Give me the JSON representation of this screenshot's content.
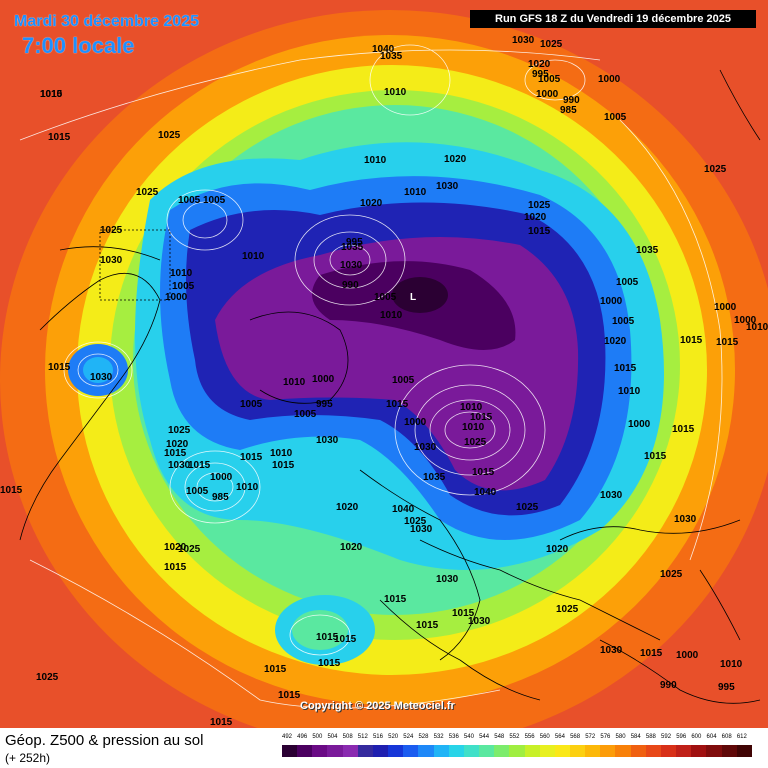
{
  "header": {
    "date_title": "Mardi 30 décembre 2025",
    "time_title": "7:00 locale",
    "run_info": "Run GFS 18 Z du Vendredi 19 décembre 2025"
  },
  "copyright": "Copyright © 2025 Meteociel.fr",
  "footer": {
    "product_title": "Géop. Z500 & pression au sol",
    "lead_time": "(+ 252h)"
  },
  "legend": {
    "values": [
      "492",
      "496",
      "500",
      "504",
      "508",
      "512",
      "516",
      "520",
      "524",
      "528",
      "532",
      "536",
      "540",
      "544",
      "548",
      "552",
      "556",
      "560",
      "564",
      "568",
      "572",
      "576",
      "580",
      "584",
      "588",
      "592",
      "596",
      "600",
      "604",
      "608",
      "612"
    ],
    "colors": [
      "#2b0033",
      "#4b0060",
      "#6a0a85",
      "#7a1a9a",
      "#8a2ab0",
      "#352a9e",
      "#1f1fb0",
      "#1636d8",
      "#1b5cf0",
      "#1e88f8",
      "#20b4f6",
      "#28d4e8",
      "#40e0c8",
      "#5ae8a0",
      "#7cec6c",
      "#a0ee40",
      "#c8f028",
      "#e8f020",
      "#fae818",
      "#fcd010",
      "#fcb808",
      "#fc9c08",
      "#f88008",
      "#f06010",
      "#e84818",
      "#d83018",
      "#c02018",
      "#a01010",
      "#800c0c",
      "#600808",
      "#400404"
    ]
  },
  "pressure_labels": [
    "1010",
    "1015",
    "1025",
    "1025",
    "1030",
    "1005",
    "1010",
    "1005",
    "1000",
    "1015",
    "1030",
    "1040",
    "1035",
    "1005",
    "1010",
    "1025",
    "1020",
    "1010",
    "1030",
    "1025",
    "1020",
    "995",
    "1005",
    "1000",
    "990",
    "985",
    "1000",
    "1005",
    "1010",
    "1020",
    "1010",
    "1030",
    "1025",
    "1020",
    "1015",
    "1035",
    "1005",
    "1000",
    "1005",
    "1020",
    "1015",
    "1010",
    "1000",
    "1035",
    "1030",
    "995",
    "990",
    "1005",
    "1010",
    "1005",
    "1000",
    "1015",
    "1010",
    "1005",
    "1000",
    "995",
    "1005",
    "1010",
    "1015",
    "1030",
    "1025",
    "1020",
    "1015",
    "1030",
    "1020",
    "1015",
    "1025",
    "1010",
    "1015",
    "1010",
    "1025",
    "1015",
    "1040",
    "1030",
    "1035",
    "1040",
    "1025",
    "1030",
    "1020",
    "1020",
    "1030",
    "1015",
    "1015",
    "1015",
    "1030",
    "1025",
    "1020",
    "1025",
    "1030",
    "1030",
    "1025",
    "1030",
    "1015",
    "1000",
    "1010",
    "995",
    "990",
    "985",
    "1000",
    "1005",
    "1010",
    "1015",
    "1015",
    "1015",
    "1015",
    "1015",
    "1015",
    "1015",
    "1015",
    "1015",
    "1025",
    "1015",
    "1000",
    "1000",
    "1010",
    "1015",
    "1015",
    "1015",
    "1025",
    "1015"
  ]
}
